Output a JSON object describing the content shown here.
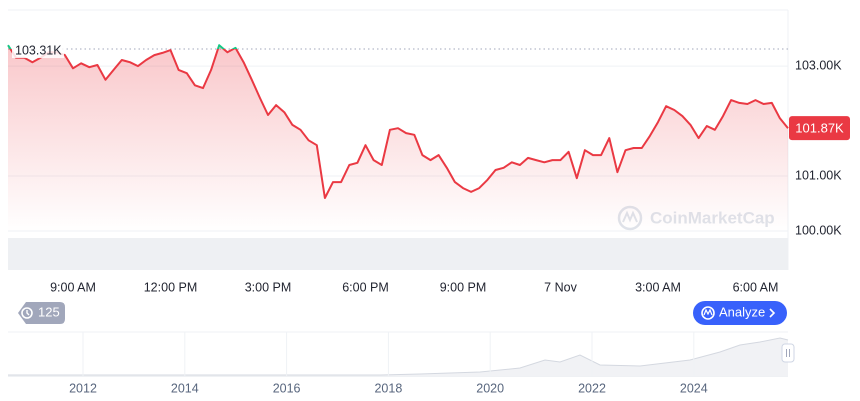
{
  "chart_data": {
    "type": "line",
    "x": [
      7,
      7.25,
      7.5,
      7.75,
      8,
      8.25,
      8.5,
      8.75,
      9,
      9.25,
      9.5,
      9.75,
      10,
      10.25,
      10.5,
      10.75,
      11,
      11.25,
      11.5,
      11.75,
      12,
      12.25,
      12.5,
      12.75,
      13,
      13.25,
      13.5,
      13.75,
      14,
      14.25,
      14.5,
      14.75,
      15,
      15.25,
      15.5,
      15.75,
      16,
      16.25,
      16.5,
      16.75,
      17,
      17.25,
      17.5,
      17.75,
      18,
      18.25,
      18.5,
      18.75,
      19,
      19.25,
      19.5,
      19.75,
      20,
      20.25,
      20.5,
      20.75,
      21,
      21.25,
      21.5,
      21.75,
      22,
      22.25,
      22.5,
      22.75,
      23,
      23.25,
      23.5,
      23.75,
      24,
      24.25,
      24.5,
      24.75,
      25,
      25.25,
      25.5,
      25.75,
      26,
      26.25,
      26.5,
      26.75,
      27,
      27.25,
      27.5,
      27.75,
      28,
      28.25,
      28.5,
      28.75,
      29,
      29.25,
      29.5,
      29.75,
      30,
      30.25,
      30.5,
      30.75,
      31
    ],
    "values": [
      103380,
      103150,
      103150,
      103070,
      103150,
      103250,
      103250,
      103200,
      102960,
      103050,
      102980,
      103020,
      102750,
      102930,
      103110,
      103070,
      103000,
      103110,
      103200,
      103240,
      103290,
      102930,
      102870,
      102650,
      102600,
      102930,
      103380,
      103250,
      103330,
      103070,
      102750,
      102420,
      102110,
      102290,
      102160,
      101930,
      101840,
      101650,
      101560,
      100600,
      100890,
      100890,
      101200,
      101240,
      101560,
      101290,
      101200,
      101840,
      101870,
      101780,
      101750,
      101380,
      101290,
      101380,
      101150,
      100890,
      100780,
      100710,
      100780,
      100930,
      101110,
      101150,
      101250,
      101200,
      101330,
      101290,
      101250,
      101290,
      101290,
      101440,
      100960,
      101470,
      101380,
      101380,
      101690,
      101070,
      101470,
      101510,
      101510,
      101730,
      101980,
      102270,
      102200,
      102090,
      101930,
      101690,
      101910,
      101840,
      102090,
      102380,
      102330,
      102310,
      102380,
      102310,
      102330,
      102050,
      101870
    ],
    "color": "#ea3943",
    "color_up": "#16c784",
    "xlim": [
      7,
      31
    ],
    "xticks": [
      {
        "value": 9,
        "label": "9:00 AM"
      },
      {
        "value": 12,
        "label": "12:00 PM"
      },
      {
        "value": 15,
        "label": "3:00 PM"
      },
      {
        "value": 18,
        "label": "6:00 PM"
      },
      {
        "value": 21,
        "label": "9:00 PM"
      },
      {
        "value": 24,
        "label": "7 Nov"
      },
      {
        "value": 27,
        "label": "3:00 AM"
      },
      {
        "value": 30,
        "label": "6:00 AM"
      }
    ],
    "ylim": [
      99290,
      104020
    ],
    "yticks": [
      {
        "value": 100000,
        "label": "100.00K"
      },
      {
        "value": 101000,
        "label": "101.00K"
      },
      {
        "value": 103000,
        "label": "103.00K"
      }
    ],
    "grid": true,
    "open": {
      "value": 103310,
      "label": "103.31K"
    },
    "current": {
      "value": 101870,
      "label": "101.87K"
    },
    "watermark": "CoinMarketCap",
    "history_badge": "125",
    "button": "Analyze",
    "navigator_labels": [
      "2012",
      "2014",
      "2016",
      "2018",
      "2020",
      "2022",
      "2024"
    ]
  }
}
